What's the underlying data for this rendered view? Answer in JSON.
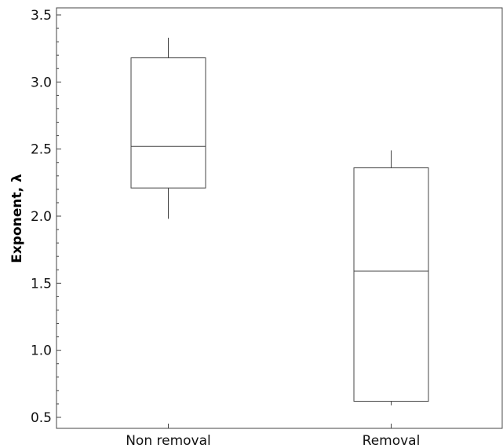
{
  "chart_data": {
    "type": "box",
    "title": "",
    "xlabel": "",
    "ylabel": "Exponent, λ",
    "ylim": [
      0.45,
      3.55
    ],
    "y_ticks": [
      "0.5",
      "1.0",
      "1.5",
      "2.0",
      "2.5",
      "3.0",
      "3.5"
    ],
    "y_tick_values": [
      0.5,
      1.0,
      1.5,
      2.0,
      2.5,
      3.0,
      3.5
    ],
    "y_minor_step": 0.1,
    "categories": [
      "Non removal",
      "Removal"
    ],
    "boxes": [
      {
        "category": "Non removal",
        "whisker_low": 1.98,
        "q1": 2.21,
        "median": 2.52,
        "q3": 3.18,
        "whisker_high": 3.33
      },
      {
        "category": "Removal",
        "whisker_low": 0.59,
        "q1": 0.62,
        "median": 1.59,
        "q3": 2.36,
        "whisker_high": 2.49
      }
    ],
    "grid": false,
    "legend": "none",
    "colors": {
      "box_stroke": "#444444",
      "box_fill": "#ffffff",
      "axis": "#444444"
    }
  }
}
